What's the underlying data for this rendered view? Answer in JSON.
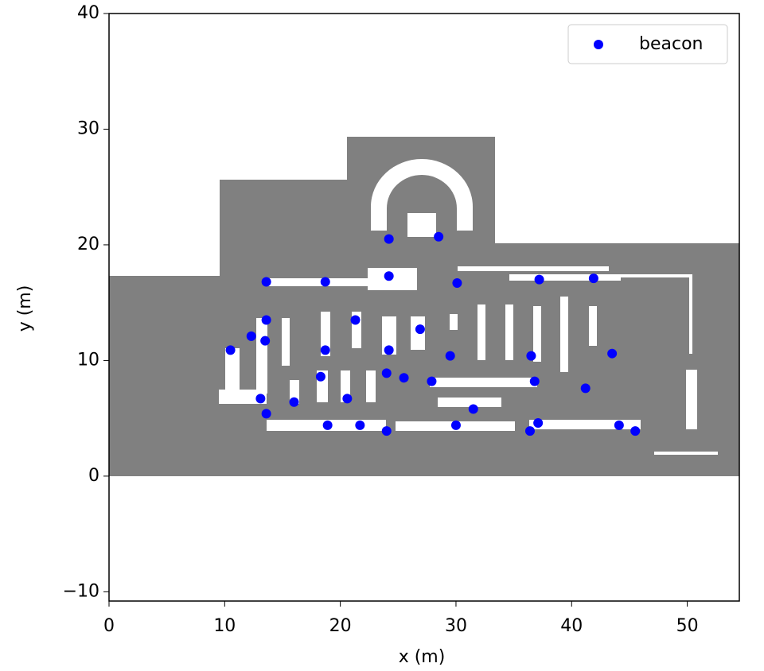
{
  "chart_data": {
    "type": "scatter",
    "xlabel": "x (m)",
    "ylabel": "y (m)",
    "xlim": [
      0,
      54.5
    ],
    "ylim": [
      -10.8,
      40
    ],
    "xticks": [
      0,
      10,
      20,
      30,
      40,
      50
    ],
    "yticks": [
      {
        "value": -10,
        "label": "−10"
      },
      0,
      10,
      20,
      30,
      40
    ],
    "legend": "upper right",
    "series": [
      {
        "name": "beacon",
        "color": "#0000ff",
        "x": [
          24.2,
          28.5,
          24.2,
          13.6,
          18.7,
          30.1,
          37.2,
          41.9,
          13.6,
          21.3,
          26.9,
          12.3,
          13.5,
          10.5,
          18.7,
          24.2,
          29.5,
          36.5,
          43.5,
          18.3,
          24.0,
          25.5,
          27.9,
          36.8,
          41.2,
          13.1,
          20.6,
          16.0,
          31.5,
          13.6,
          18.9,
          21.7,
          30.0,
          37.1,
          44.1,
          24.0,
          36.4,
          45.5
        ],
        "values": [
          20.5,
          20.7,
          17.3,
          16.8,
          16.8,
          16.7,
          17.0,
          17.1,
          13.5,
          13.5,
          12.7,
          12.1,
          11.7,
          10.9,
          10.9,
          10.9,
          10.4,
          10.4,
          10.6,
          8.6,
          8.9,
          8.5,
          8.2,
          8.2,
          7.6,
          6.7,
          6.7,
          6.4,
          5.8,
          5.4,
          4.4,
          4.4,
          4.4,
          4.6,
          4.4,
          3.9,
          3.9,
          3.9
        ]
      }
    ]
  }
}
